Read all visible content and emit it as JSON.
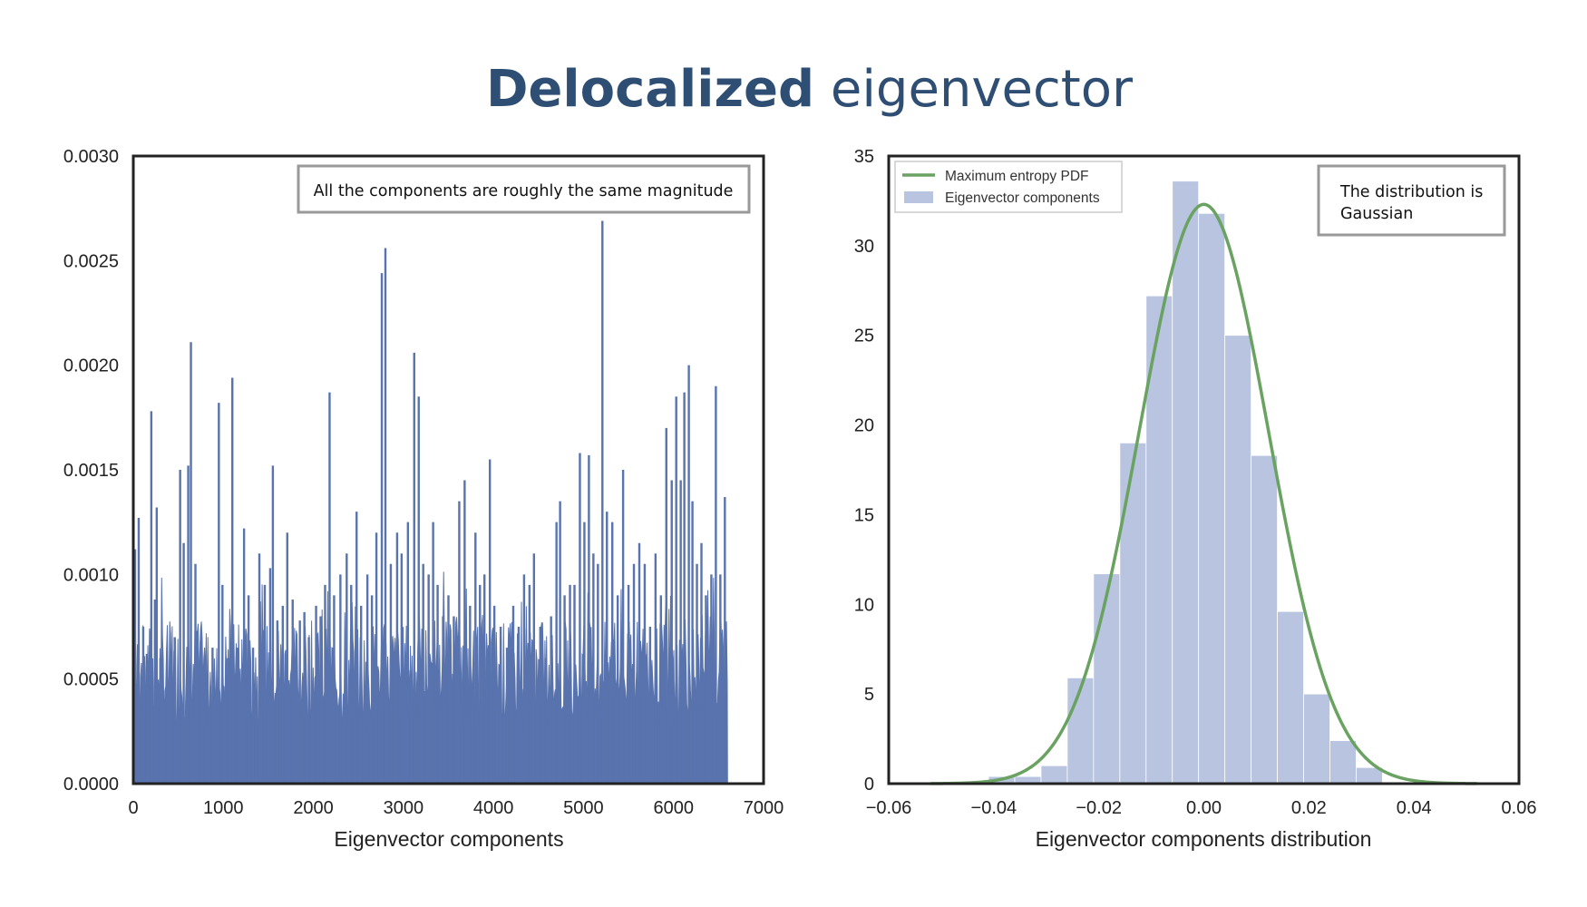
{
  "slide": {
    "title_bold": "Delocalized",
    "title_rest": " eigenvector"
  },
  "colors": {
    "bar": "#5873ad",
    "hist": "#b9c4e0",
    "pdf": "#6aa361",
    "title": "#2f4e73",
    "box": "#999999"
  },
  "chart_data": [
    {
      "type": "bar",
      "title": "",
      "xlabel": "Eigenvector components",
      "ylabel": "",
      "xlim": [
        0,
        7000
      ],
      "ylim": [
        0,
        0.003
      ],
      "xticks": [
        "0",
        "1000",
        "2000",
        "3000",
        "4000",
        "5000",
        "6000",
        "7000"
      ],
      "yticks": [
        "0.0000",
        "0.0005",
        "0.0010",
        "0.0015",
        "0.0020",
        "0.0025",
        "0.0030"
      ],
      "n_components": 6600,
      "annotation": "All the components are roughly the same magnitude",
      "spikes": [
        {
          "x": 20,
          "y": 0.00112
        },
        {
          "x": 60,
          "y": 0.00127
        },
        {
          "x": 110,
          "y": 0.00075
        },
        {
          "x": 150,
          "y": 0.00062
        },
        {
          "x": 200,
          "y": 0.00178
        },
        {
          "x": 240,
          "y": 0.00088
        },
        {
          "x": 260,
          "y": 0.00132
        },
        {
          "x": 300,
          "y": 0.0006
        },
        {
          "x": 360,
          "y": 0.00045
        },
        {
          "x": 420,
          "y": 0.00062
        },
        {
          "x": 460,
          "y": 0.0007
        },
        {
          "x": 520,
          "y": 0.0015
        },
        {
          "x": 560,
          "y": 0.00115
        },
        {
          "x": 610,
          "y": 0.00152
        },
        {
          "x": 640,
          "y": 0.00211
        },
        {
          "x": 690,
          "y": 0.00105
        },
        {
          "x": 750,
          "y": 0.00068
        },
        {
          "x": 800,
          "y": 0.0005
        },
        {
          "x": 880,
          "y": 0.00065
        },
        {
          "x": 950,
          "y": 0.00182
        },
        {
          "x": 990,
          "y": 0.00095
        },
        {
          "x": 1050,
          "y": 0.0006
        },
        {
          "x": 1100,
          "y": 0.00194
        },
        {
          "x": 1160,
          "y": 0.00065
        },
        {
          "x": 1230,
          "y": 0.00122
        },
        {
          "x": 1280,
          "y": 0.0009
        },
        {
          "x": 1330,
          "y": 0.00065
        },
        {
          "x": 1400,
          "y": 0.0011
        },
        {
          "x": 1460,
          "y": 0.00095
        },
        {
          "x": 1520,
          "y": 0.00103
        },
        {
          "x": 1550,
          "y": 0.00152
        },
        {
          "x": 1600,
          "y": 0.00078
        },
        {
          "x": 1660,
          "y": 0.00085
        },
        {
          "x": 1710,
          "y": 0.0012
        },
        {
          "x": 1770,
          "y": 0.00088
        },
        {
          "x": 1850,
          "y": 0.00078
        },
        {
          "x": 1900,
          "y": 0.00082
        },
        {
          "x": 1950,
          "y": 0.0007
        },
        {
          "x": 2030,
          "y": 0.00085
        },
        {
          "x": 2080,
          "y": 0.0008
        },
        {
          "x": 2130,
          "y": 0.00095
        },
        {
          "x": 2180,
          "y": 0.00187
        },
        {
          "x": 2230,
          "y": 0.0009
        },
        {
          "x": 2300,
          "y": 0.001
        },
        {
          "x": 2370,
          "y": 0.0011
        },
        {
          "x": 2420,
          "y": 0.00095
        },
        {
          "x": 2480,
          "y": 0.0013
        },
        {
          "x": 2530,
          "y": 0.00085
        },
        {
          "x": 2600,
          "y": 0.001
        },
        {
          "x": 2650,
          "y": 0.0009
        },
        {
          "x": 2700,
          "y": 0.0012
        },
        {
          "x": 2760,
          "y": 0.00244
        },
        {
          "x": 2800,
          "y": 0.00256
        },
        {
          "x": 2860,
          "y": 0.00105
        },
        {
          "x": 2930,
          "y": 0.0012
        },
        {
          "x": 2980,
          "y": 0.0011
        },
        {
          "x": 3050,
          "y": 0.00125
        },
        {
          "x": 3120,
          "y": 0.00206
        },
        {
          "x": 3170,
          "y": 0.00185
        },
        {
          "x": 3220,
          "y": 0.00105
        },
        {
          "x": 3280,
          "y": 0.001
        },
        {
          "x": 3330,
          "y": 0.00125
        },
        {
          "x": 3380,
          "y": 0.00095
        },
        {
          "x": 3440,
          "y": 0.0008
        },
        {
          "x": 3500,
          "y": 0.0009
        },
        {
          "x": 3560,
          "y": 0.0008
        },
        {
          "x": 3620,
          "y": 0.00135
        },
        {
          "x": 3680,
          "y": 0.00145
        },
        {
          "x": 3740,
          "y": 0.00085
        },
        {
          "x": 3800,
          "y": 0.0012
        },
        {
          "x": 3850,
          "y": 0.00095
        },
        {
          "x": 3900,
          "y": 0.001
        },
        {
          "x": 3960,
          "y": 0.00155
        },
        {
          "x": 4010,
          "y": 0.00085
        },
        {
          "x": 4080,
          "y": 0.00075
        },
        {
          "x": 4150,
          "y": 0.00065
        },
        {
          "x": 4220,
          "y": 0.00085
        },
        {
          "x": 4280,
          "y": 0.00075
        },
        {
          "x": 4340,
          "y": 0.001
        },
        {
          "x": 4400,
          "y": 0.00095
        },
        {
          "x": 4450,
          "y": 0.0011
        },
        {
          "x": 4520,
          "y": 0.00075
        },
        {
          "x": 4580,
          "y": 0.0006
        },
        {
          "x": 4640,
          "y": 0.0008
        },
        {
          "x": 4700,
          "y": 0.00125
        },
        {
          "x": 4740,
          "y": 0.00135
        },
        {
          "x": 4790,
          "y": 0.0009
        },
        {
          "x": 4850,
          "y": 0.00095
        },
        {
          "x": 4900,
          "y": 0.00095
        },
        {
          "x": 4960,
          "y": 0.00158
        },
        {
          "x": 5010,
          "y": 0.00125
        },
        {
          "x": 5060,
          "y": 0.00157
        },
        {
          "x": 5110,
          "y": 0.0011
        },
        {
          "x": 5160,
          "y": 0.00105
        },
        {
          "x": 5210,
          "y": 0.00269
        },
        {
          "x": 5260,
          "y": 0.0013
        },
        {
          "x": 5320,
          "y": 0.00125
        },
        {
          "x": 5380,
          "y": 0.0009
        },
        {
          "x": 5440,
          "y": 0.0015
        },
        {
          "x": 5500,
          "y": 0.00095
        },
        {
          "x": 5560,
          "y": 0.00105
        },
        {
          "x": 5620,
          "y": 0.00115
        },
        {
          "x": 5680,
          "y": 0.00105
        },
        {
          "x": 5740,
          "y": 0.00075
        },
        {
          "x": 5800,
          "y": 0.0011
        },
        {
          "x": 5860,
          "y": 0.0009
        },
        {
          "x": 5920,
          "y": 0.0017
        },
        {
          "x": 5980,
          "y": 0.00145
        },
        {
          "x": 6030,
          "y": 0.00185
        },
        {
          "x": 6080,
          "y": 0.00145
        },
        {
          "x": 6120,
          "y": 0.00187
        },
        {
          "x": 6170,
          "y": 0.002
        },
        {
          "x": 6210,
          "y": 0.00135
        },
        {
          "x": 6260,
          "y": 0.00105
        },
        {
          "x": 6310,
          "y": 0.00115
        },
        {
          "x": 6360,
          "y": 0.0009
        },
        {
          "x": 6420,
          "y": 0.001
        },
        {
          "x": 6470,
          "y": 0.0019
        },
        {
          "x": 6520,
          "y": 0.001
        },
        {
          "x": 6570,
          "y": 0.00137
        }
      ]
    },
    {
      "type": "histogram",
      "title": "",
      "xlabel": "Eigenvector components distribution",
      "ylabel": "",
      "xlim": [
        -0.06,
        0.06
      ],
      "ylim": [
        0,
        35
      ],
      "xticks": [
        "−0.06",
        "−0.04",
        "−0.02",
        "0.00",
        "0.02",
        "0.04",
        "0.06"
      ],
      "yticks": [
        "0",
        "5",
        "10",
        "15",
        "20",
        "25",
        "30",
        "35"
      ],
      "bin_edges": [
        -0.041,
        -0.036,
        -0.031,
        -0.026,
        -0.021,
        -0.016,
        -0.011,
        -0.006,
        -0.001,
        0.004,
        0.009,
        0.014,
        0.019,
        0.024,
        0.029,
        0.034
      ],
      "counts": [
        0.4,
        0.4,
        1.0,
        5.9,
        11.7,
        19.0,
        27.2,
        33.6,
        31.8,
        25.0,
        18.3,
        9.6,
        5.0,
        2.4,
        0.9
      ],
      "pdf": {
        "name": "Maximum entropy PDF",
        "mean": 0.0,
        "sd": 0.01235,
        "range": [
          -0.052,
          0.052
        ]
      },
      "legend": [
        "Maximum entropy PDF",
        "Eigenvector components"
      ],
      "legend_position": "top-left",
      "annotation_line1": "The distribution is",
      "annotation_line2": "Gaussian"
    }
  ]
}
